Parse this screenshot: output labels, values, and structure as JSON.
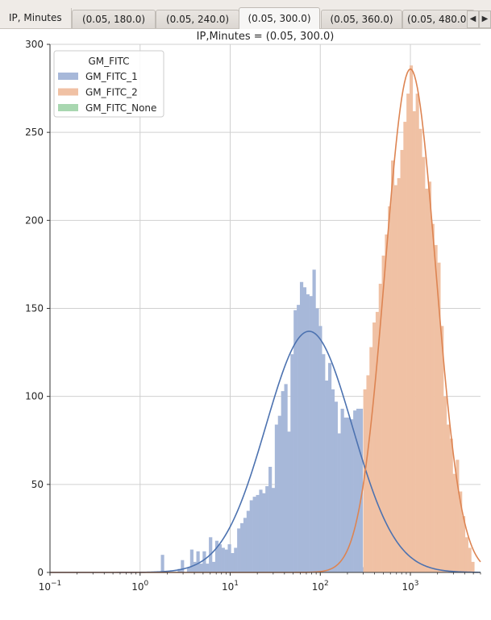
{
  "tabs": {
    "first_label": "IP, Minutes",
    "items": [
      {
        "label": "(0.05, 180.0)",
        "active": false
      },
      {
        "label": "(0.05, 240.0)",
        "active": false
      },
      {
        "label": "(0.05, 300.0)",
        "active": true
      },
      {
        "label": "(0.05, 360.0)",
        "active": false
      },
      {
        "label": "(0.05, 480.0)",
        "active": false
      }
    ],
    "scroll_left_icon": "◀",
    "scroll_right_icon": "▶"
  },
  "chart_data": {
    "type": "bar",
    "title": "IP,Minutes = (0.05, 300.0)",
    "xscale": "log",
    "xlim": [
      0.1,
      6000
    ],
    "ylim": [
      0,
      300
    ],
    "x_ticks": [
      {
        "value": 0.1,
        "base": "10",
        "exp": "−1"
      },
      {
        "value": 1,
        "base": "10",
        "exp": "0"
      },
      {
        "value": 10,
        "base": "10",
        "exp": "1"
      },
      {
        "value": 100,
        "base": "10",
        "exp": "2"
      },
      {
        "value": 1000,
        "base": "10",
        "exp": "3"
      }
    ],
    "y_ticks": [
      0,
      50,
      100,
      150,
      200,
      250,
      300
    ],
    "grid": true,
    "legend": {
      "title": "GM_FITC",
      "placement": "top-left",
      "entries": [
        {
          "name": "GM_FITC_1",
          "color": "#a7b8d9"
        },
        {
          "name": "GM_FITC_2",
          "color": "#f0c1a4"
        },
        {
          "name": "GM_FITC_None",
          "color": "#a8d7b0"
        }
      ]
    },
    "series": [
      {
        "name": "GM_FITC_1",
        "color": "#a7b8d9",
        "curve_color": "#4c72b0",
        "bins": [
          [
            1.7,
            1.84,
            10
          ],
          [
            2.61,
            2.83,
            2
          ],
          [
            2.83,
            3.06,
            7
          ],
          [
            3.31,
            3.59,
            3
          ],
          [
            3.59,
            3.89,
            13
          ],
          [
            3.89,
            4.21,
            6
          ],
          [
            4.21,
            4.56,
            12
          ],
          [
            4.56,
            4.94,
            5
          ],
          [
            4.94,
            5.36,
            12
          ],
          [
            5.36,
            5.8,
            5
          ],
          [
            5.8,
            6.29,
            20
          ],
          [
            6.29,
            6.81,
            6
          ],
          [
            6.81,
            7.38,
            18
          ],
          [
            7.38,
            8.0,
            16
          ],
          [
            8.0,
            8.67,
            14
          ],
          [
            8.67,
            9.39,
            13
          ],
          [
            9.39,
            10.18,
            16
          ],
          [
            10.18,
            11.02,
            11
          ],
          [
            11.02,
            11.94,
            14
          ],
          [
            11.94,
            12.94,
            25
          ],
          [
            12.94,
            14.02,
            28
          ],
          [
            14.02,
            15.19,
            31
          ],
          [
            15.19,
            16.46,
            35
          ],
          [
            16.46,
            17.83,
            41
          ],
          [
            17.83,
            19.32,
            43
          ],
          [
            19.32,
            20.94,
            44
          ],
          [
            20.94,
            22.68,
            47
          ],
          [
            22.68,
            24.58,
            45
          ],
          [
            24.58,
            26.63,
            49
          ],
          [
            26.63,
            28.85,
            60
          ],
          [
            28.85,
            31.26,
            48
          ],
          [
            31.26,
            33.87,
            84
          ],
          [
            33.87,
            36.7,
            89
          ],
          [
            36.7,
            39.76,
            103
          ],
          [
            39.76,
            43.08,
            107
          ],
          [
            43.08,
            46.67,
            80
          ],
          [
            46.67,
            50.57,
            124
          ],
          [
            50.57,
            54.79,
            149
          ],
          [
            54.79,
            59.36,
            152
          ],
          [
            59.36,
            64.32,
            165
          ],
          [
            64.32,
            69.69,
            162
          ],
          [
            69.69,
            75.5,
            158
          ],
          [
            75.5,
            81.8,
            157
          ],
          [
            81.8,
            88.63,
            172
          ],
          [
            88.63,
            96.03,
            150
          ],
          [
            96.03,
            104.04,
            140
          ],
          [
            104.04,
            112.73,
            124
          ],
          [
            112.73,
            122.14,
            109
          ],
          [
            122.14,
            132.33,
            119
          ],
          [
            132.33,
            143.38,
            104
          ],
          [
            143.38,
            155.35,
            97
          ],
          [
            155.35,
            168.32,
            79
          ],
          [
            168.32,
            182.37,
            93
          ],
          [
            182.37,
            197.59,
            88
          ],
          [
            197.59,
            214.08,
            88
          ],
          [
            214.08,
            231.95,
            87
          ],
          [
            231.95,
            251.31,
            92
          ],
          [
            251.31,
            272.29,
            93
          ],
          [
            272.29,
            295.02,
            93
          ],
          [
            295.02,
            300.0,
            3
          ]
        ]
      },
      {
        "name": "GM_FITC_2",
        "color": "#f0c1a4",
        "curve_color": "#dd8452",
        "bins": [
          [
            300.0,
            324.7,
            104
          ],
          [
            324.7,
            351.3,
            112
          ],
          [
            351.3,
            380.1,
            128
          ],
          [
            380.1,
            411.3,
            142
          ],
          [
            411.3,
            445.0,
            148
          ],
          [
            445.0,
            481.4,
            164
          ],
          [
            481.4,
            520.9,
            180
          ],
          [
            520.9,
            563.6,
            192
          ],
          [
            563.6,
            609.8,
            208
          ],
          [
            609.8,
            659.7,
            234
          ],
          [
            659.7,
            713.8,
            220
          ],
          [
            713.8,
            772.4,
            224
          ],
          [
            772.4,
            835.7,
            240
          ],
          [
            835.7,
            904.2,
            256
          ],
          [
            904.2,
            978.4,
            272
          ],
          [
            978.4,
            1058.5,
            288
          ],
          [
            1058.5,
            1145.3,
            262
          ],
          [
            1145.3,
            1239.2,
            272
          ],
          [
            1239.2,
            1340.8,
            252
          ],
          [
            1340.8,
            1450.6,
            236
          ],
          [
            1450.6,
            1569.5,
            218
          ],
          [
            1569.5,
            1698.2,
            222
          ],
          [
            1698.2,
            1837.4,
            198
          ],
          [
            1837.4,
            1988.0,
            186
          ],
          [
            1988.0,
            2151.0,
            176
          ],
          [
            2151.0,
            2327.3,
            140
          ],
          [
            2327.3,
            2518.2,
            100
          ],
          [
            2518.2,
            2724.6,
            84
          ],
          [
            2724.6,
            2948.0,
            76
          ],
          [
            2948.0,
            3189.7,
            56
          ],
          [
            3189.7,
            3451.1,
            64
          ],
          [
            3451.1,
            3734.0,
            46
          ],
          [
            3734.0,
            4040.0,
            32
          ],
          [
            4040.0,
            4371.2,
            20
          ],
          [
            4371.2,
            4729.6,
            14
          ],
          [
            4729.6,
            5117.3,
            6
          ]
        ]
      },
      {
        "name": "GM_FITC_None",
        "color": "#a8d7b0",
        "bins": []
      }
    ],
    "fits": [
      {
        "name": "GM_FITC_1",
        "peak_x": 75,
        "peak_y": 137
      },
      {
        "name": "GM_FITC_2",
        "peak_x": 1000,
        "peak_y": 286
      }
    ]
  }
}
